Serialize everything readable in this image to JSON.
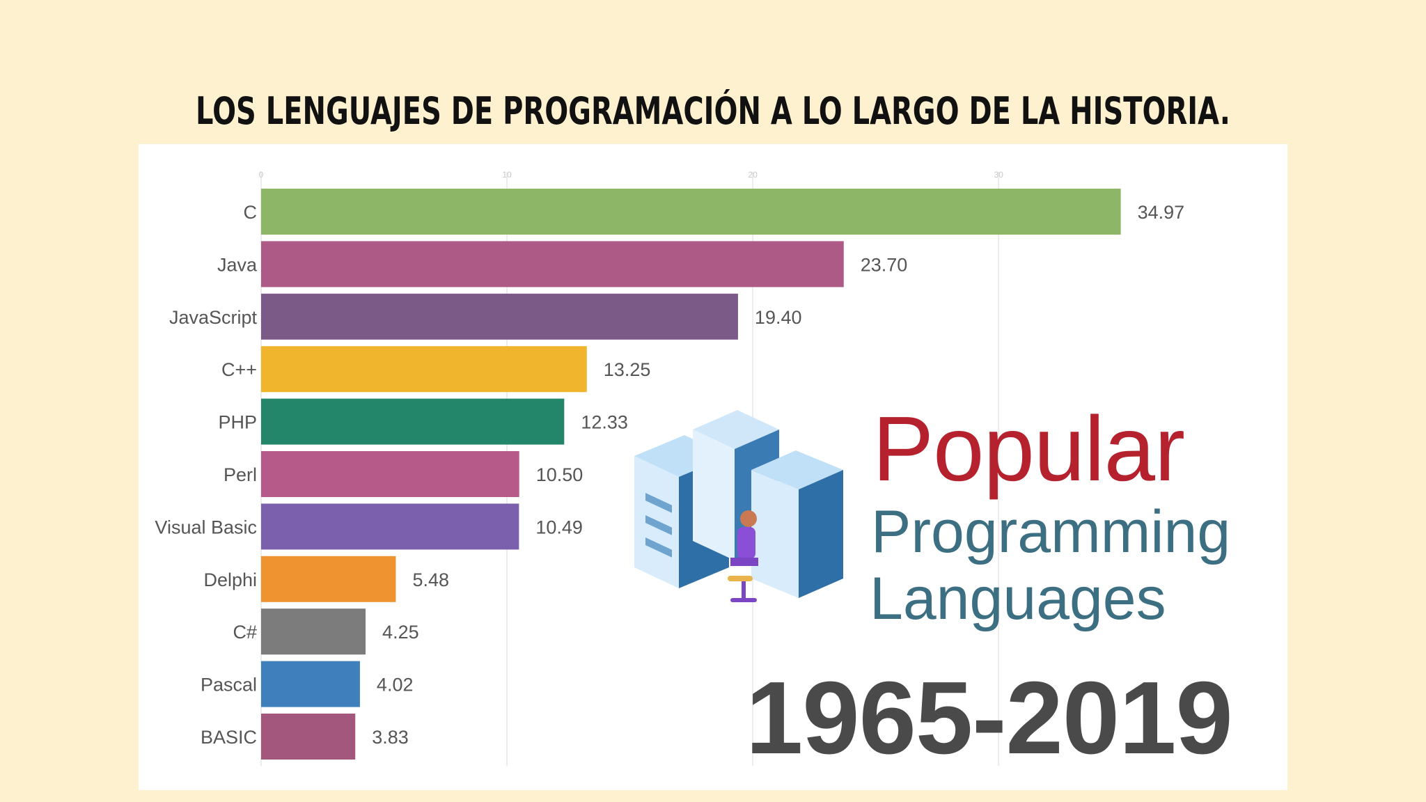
{
  "title": "LOS LENGUAJES DE PROGRAMACIÓN A LO LARGO DE LA HISTORIA.",
  "overlay": {
    "line1": "Popular",
    "line2": "Programming",
    "line3": "Languages",
    "years": "1965-2019"
  },
  "chart_data": {
    "type": "bar",
    "orientation": "horizontal",
    "categories": [
      "C",
      "Java",
      "JavaScript",
      "C++",
      "PHP",
      "Perl",
      "Visual Basic",
      "Delphi",
      "C#",
      "Pascal",
      "BASIC"
    ],
    "values": [
      34.97,
      23.7,
      19.4,
      13.25,
      12.33,
      10.5,
      10.49,
      5.48,
      4.25,
      4.02,
      3.83
    ],
    "value_labels": [
      "34.97",
      "23.70",
      "19.40",
      "13.25",
      "12.33",
      "10.50",
      "10.49",
      "5.48",
      "4.25",
      "4.02",
      "3.83"
    ],
    "colors": [
      "#8db766",
      "#ad5a87",
      "#7c5a88",
      "#f1b52d",
      "#23866b",
      "#b65b89",
      "#7a60ad",
      "#ef9331",
      "#7c7c7c",
      "#3f7fbb",
      "#a4577d"
    ],
    "xlim": [
      0,
      36
    ],
    "grid": true,
    "axis_ticks": [
      0,
      10,
      20,
      30
    ]
  }
}
